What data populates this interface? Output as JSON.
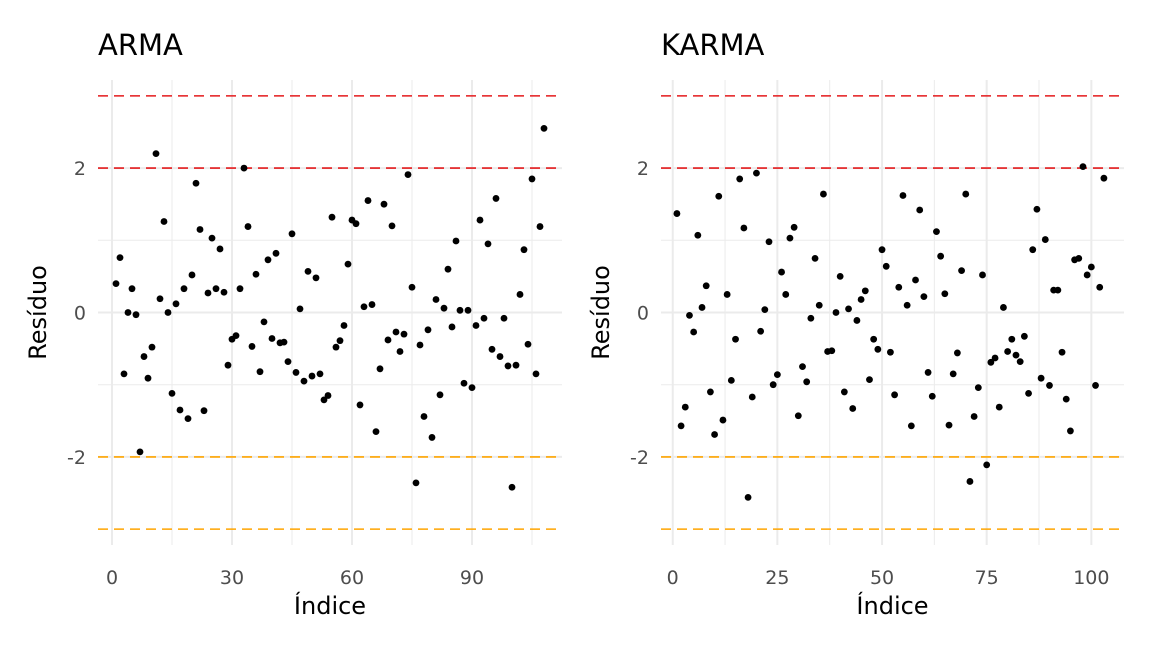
{
  "chart_data": [
    {
      "type": "scatter",
      "title": "ARMA",
      "xlabel": "Índice",
      "ylabel": "Resíduo",
      "xlim": [
        0,
        109
      ],
      "ylim": [
        -3,
        3
      ],
      "x_ticks": [
        0,
        30,
        60,
        90
      ],
      "x_tick_labels": [
        "0",
        "30",
        "60",
        "90"
      ],
      "y_ticks": [
        -2,
        0,
        2
      ],
      "y_tick_labels": [
        "-2",
        "0",
        "2"
      ],
      "grid": true,
      "reference_lines": [
        {
          "y": 3,
          "color": "#e41a1c",
          "style": "dashed"
        },
        {
          "y": 2,
          "color": "#e41a1c",
          "style": "dashed"
        },
        {
          "y": -2,
          "color": "#ffa500",
          "style": "dashed"
        },
        {
          "y": -3,
          "color": "#ffa500",
          "style": "dashed"
        }
      ],
      "point_color": "#000000",
      "x": [
        1,
        2,
        3,
        4,
        5,
        6,
        7,
        8,
        9,
        10,
        11,
        12,
        13,
        14,
        15,
        16,
        17,
        18,
        19,
        20,
        21,
        22,
        23,
        24,
        25,
        26,
        27,
        28,
        29,
        30,
        31,
        32,
        33,
        34,
        35,
        36,
        37,
        38,
        39,
        40,
        41,
        42,
        43,
        44,
        45,
        46,
        47,
        48,
        49,
        50,
        51,
        52,
        53,
        54,
        55,
        56,
        57,
        58,
        59,
        60,
        61,
        62,
        63,
        64,
        65,
        66,
        67,
        68,
        69,
        70,
        71,
        72,
        73,
        74,
        75,
        76,
        77,
        78,
        79,
        80,
        81,
        82,
        83,
        84,
        85,
        86,
        87,
        88,
        89,
        90,
        91,
        92,
        93,
        94,
        95,
        96,
        97,
        98,
        99,
        100,
        101,
        102,
        103,
        104,
        105,
        106,
        107,
        108
      ],
      "y": [
        0.4,
        0.76,
        -0.85,
        0.0,
        0.33,
        -0.03,
        -1.93,
        -0.61,
        -0.91,
        -0.48,
        2.2,
        0.19,
        1.26,
        0.0,
        -1.12,
        0.12,
        -1.35,
        0.33,
        -1.47,
        0.52,
        1.79,
        1.15,
        -1.36,
        0.27,
        1.03,
        0.33,
        0.88,
        0.28,
        -0.73,
        -0.37,
        -0.32,
        0.33,
        2.0,
        1.19,
        -0.47,
        0.53,
        -0.82,
        -0.13,
        0.73,
        -0.36,
        0.82,
        -0.42,
        -0.41,
        -0.68,
        1.09,
        -0.83,
        0.05,
        -0.95,
        0.57,
        -0.88,
        0.48,
        -0.85,
        -1.21,
        -1.15,
        1.32,
        -0.48,
        -0.39,
        -0.18,
        0.67,
        1.28,
        1.23,
        -1.28,
        0.08,
        1.55,
        0.11,
        -1.65,
        -0.78,
        1.5,
        -0.38,
        1.2,
        -0.27,
        -0.54,
        -0.3,
        1.91,
        0.35,
        -2.36,
        -0.45,
        -1.44,
        -0.24,
        -1.73,
        0.18,
        -1.14,
        0.06,
        0.6,
        -0.2,
        0.99,
        0.03,
        -0.98,
        0.03,
        -1.04,
        -0.18,
        1.28,
        -0.08,
        0.95,
        -0.51,
        1.58,
        -0.61,
        -0.08,
        -0.74,
        -2.42,
        -0.73,
        0.25,
        0.87,
        -0.44,
        1.85,
        -0.85,
        1.19,
        2.55
      ]
    },
    {
      "type": "scatter",
      "title": "KARMA",
      "xlabel": "Índice",
      "ylabel": "Resíduo",
      "xlim": [
        0,
        104
      ],
      "ylim": [
        -3,
        3
      ],
      "x_ticks": [
        0,
        25,
        50,
        75,
        100
      ],
      "x_tick_labels": [
        "0",
        "25",
        "50",
        "75",
        "100"
      ],
      "y_ticks": [
        -2,
        0,
        2
      ],
      "y_tick_labels": [
        "-2",
        "0",
        "2"
      ],
      "grid": true,
      "reference_lines": [
        {
          "y": 3,
          "color": "#e41a1c",
          "style": "dashed"
        },
        {
          "y": 2,
          "color": "#e41a1c",
          "style": "dashed"
        },
        {
          "y": -2,
          "color": "#ffa500",
          "style": "dashed"
        },
        {
          "y": -3,
          "color": "#ffa500",
          "style": "dashed"
        }
      ],
      "point_color": "#000000",
      "x": [
        1,
        2,
        3,
        4,
        5,
        6,
        7,
        8,
        9,
        10,
        11,
        12,
        13,
        14,
        15,
        16,
        17,
        18,
        19,
        20,
        21,
        22,
        23,
        24,
        25,
        26,
        27,
        28,
        29,
        30,
        31,
        32,
        33,
        34,
        35,
        36,
        37,
        38,
        39,
        40,
        41,
        42,
        43,
        44,
        45,
        46,
        47,
        48,
        49,
        50,
        51,
        52,
        53,
        54,
        55,
        56,
        57,
        58,
        59,
        60,
        61,
        62,
        63,
        64,
        65,
        66,
        67,
        68,
        69,
        70,
        71,
        72,
        73,
        74,
        75,
        76,
        77,
        78,
        79,
        80,
        81,
        82,
        83,
        84,
        85,
        86,
        87,
        88,
        89,
        90,
        91,
        92,
        93,
        94,
        95,
        96,
        97,
        98,
        99,
        100,
        101,
        102,
        103
      ],
      "y": [
        1.37,
        -1.57,
        -1.31,
        -0.04,
        -0.27,
        1.07,
        0.07,
        0.37,
        -1.1,
        -1.69,
        1.61,
        -1.49,
        0.25,
        -0.94,
        -0.37,
        1.85,
        1.17,
        -2.56,
        -1.17,
        1.93,
        -0.26,
        0.04,
        0.98,
        -1.0,
        -0.86,
        0.56,
        0.25,
        1.03,
        1.18,
        -1.43,
        -0.75,
        -0.96,
        -0.08,
        0.75,
        0.1,
        1.64,
        -0.54,
        -0.53,
        0.0,
        0.5,
        -1.1,
        0.05,
        -1.33,
        -0.11,
        0.18,
        0.3,
        -0.93,
        -0.37,
        -0.51,
        0.87,
        0.64,
        -0.55,
        -1.14,
        0.35,
        1.62,
        0.1,
        -1.57,
        0.45,
        1.42,
        0.22,
        -0.83,
        -1.16,
        1.12,
        0.78,
        0.26,
        -1.56,
        -0.85,
        -0.56,
        0.58,
        1.64,
        -2.34,
        -1.44,
        -1.04,
        0.52,
        -2.11,
        -0.69,
        -0.63,
        -1.31,
        0.07,
        -0.54,
        -0.37,
        -0.59,
        -0.68,
        -0.33,
        -1.12,
        0.87,
        1.43,
        -0.91,
        1.01,
        -1.01,
        0.31,
        0.31,
        -0.55,
        -1.2,
        -1.64,
        0.73,
        0.75,
        2.02,
        0.52,
        0.63,
        -1.01,
        0.35,
        1.86
      ]
    }
  ]
}
